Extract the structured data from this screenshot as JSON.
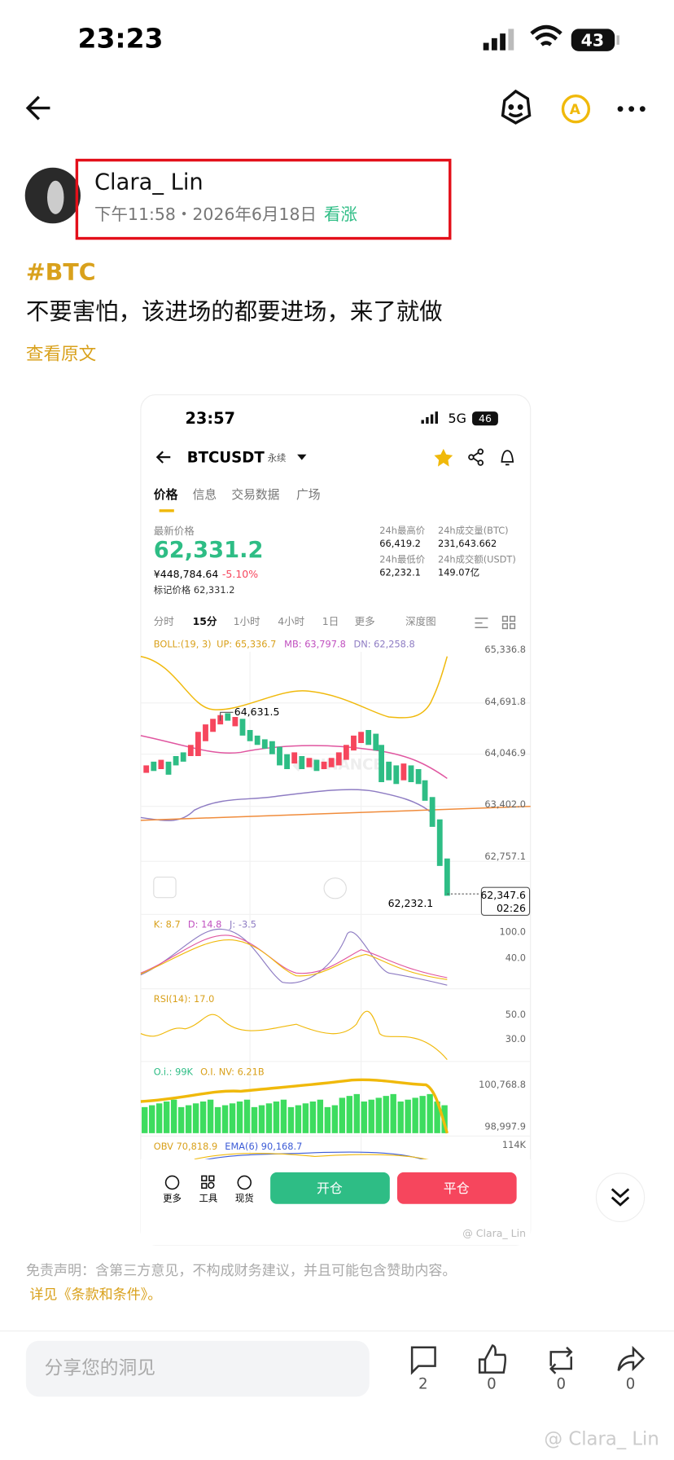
{
  "status_bar": {
    "time": "23:23",
    "battery": "43"
  },
  "post": {
    "author": "Clara_ Lin",
    "time": "下午11:58・2026年6月18日",
    "sentiment": "看涨",
    "tag": "#BTC",
    "text": "不要害怕，该进场的都要进场，来了就做",
    "view_original": "查看原文"
  },
  "embedded": {
    "status_time": "23:57",
    "network": "5G",
    "battery": "46",
    "symbol": "BTCUSDT",
    "contract": "永续",
    "tabs": [
      "价格",
      "信息",
      "交易数据",
      "广场"
    ],
    "last_price_label": "最新价格",
    "last_price": "62,331.2",
    "cny": "¥448,784.64",
    "change": "-5.10%",
    "mark_price": "标记价格 62,331.2",
    "stats": [
      {
        "label": "24h最高价",
        "value": "66,419.2"
      },
      {
        "label": "24h成交量(BTC)",
        "value": "231,643.662"
      },
      {
        "label": "24h最低价",
        "value": "62,232.1"
      },
      {
        "label": "24h成交额(USDT)",
        "value": "149.07亿"
      }
    ],
    "intervals": [
      "分时",
      "15分",
      "1小时",
      "4小时",
      "1日",
      "更多",
      "深度图"
    ],
    "boll": [
      "BOLL:(19, 3)",
      "UP: 65,336.7",
      "MB: 63,797.8",
      "DN: 62,258.8"
    ],
    "price_axis": [
      "65,336.8",
      "64,691.8",
      "64,046.9",
      "63,402.0",
      "62,757.1"
    ],
    "high_label": "64,631.5",
    "low_label": "62,232.1",
    "current": "62,347.6",
    "countdown": "02:26",
    "kdj": [
      "K: 8.7",
      "D: 14.8",
      "J: -3.5"
    ],
    "kdj_axis": [
      "100.0",
      "40.0"
    ],
    "rsi": "RSI(14): 17.0",
    "rsi_axis": [
      "50.0",
      "30.0"
    ],
    "oi": [
      "O.i.: 99K",
      "O.I. NV: 6.21B"
    ],
    "oi_axis": [
      "100,768.8",
      "98,997.9"
    ],
    "obv": [
      "OBV 70,818.9",
      "EMA(6) 90,168.7"
    ],
    "obv_axis": "114K",
    "tools": [
      "更多",
      "工具",
      "现货"
    ],
    "open": "开仓",
    "close": "平仓",
    "watermark": "@ Clara_ Lin"
  },
  "disclaimer": {
    "text": "免责声明：含第三方意见，不构成财务建议，并且可能包含赞助内容。",
    "link": "详见《条款和条件》。"
  },
  "footer": {
    "placeholder": "分享您的洞见",
    "counts": [
      2,
      0,
      0,
      0
    ]
  },
  "watermark": "@ Clara_ Lin"
}
